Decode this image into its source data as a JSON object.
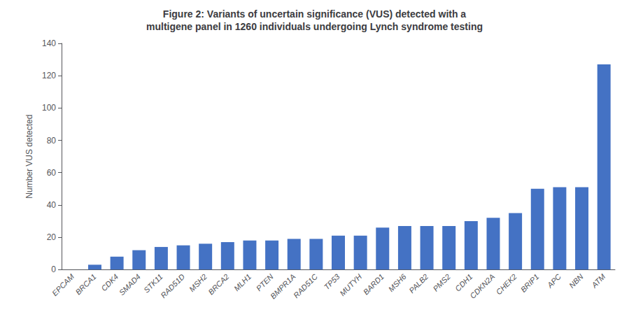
{
  "chart_data": {
    "type": "bar",
    "title": "Figure 2: Variants of uncertain significance (VUS) detected with a\nmultigene panel in 1260 individuals undergoing Lynch syndrome testing",
    "ylabel": "Number VUS detected",
    "categories": [
      "EPCAM",
      "BRCA1",
      "CDK4",
      "SMAD4",
      "STK11",
      "RAD51D",
      "MSH2",
      "BRCA2",
      "MLH1",
      "PTEN",
      "BMPR1A",
      "RAD51C",
      "TP53",
      "MUTYH",
      "BARD1",
      "MSH6",
      "PALB2",
      "PMS2",
      "CDH1",
      "CDKN2A",
      "CHEK2",
      "BRIP1",
      "APC",
      "NBN",
      "ATM"
    ],
    "values": [
      0,
      3,
      8,
      12,
      14,
      15,
      16,
      17,
      18,
      18,
      19,
      19,
      21,
      21,
      26,
      27,
      27,
      27,
      30,
      32,
      35,
      50,
      51,
      51,
      127
    ],
    "color": "#4472C4",
    "ylim": [
      0,
      140
    ],
    "yticks": [
      0,
      20,
      40,
      60,
      80,
      100,
      120,
      140
    ],
    "grid": false
  }
}
